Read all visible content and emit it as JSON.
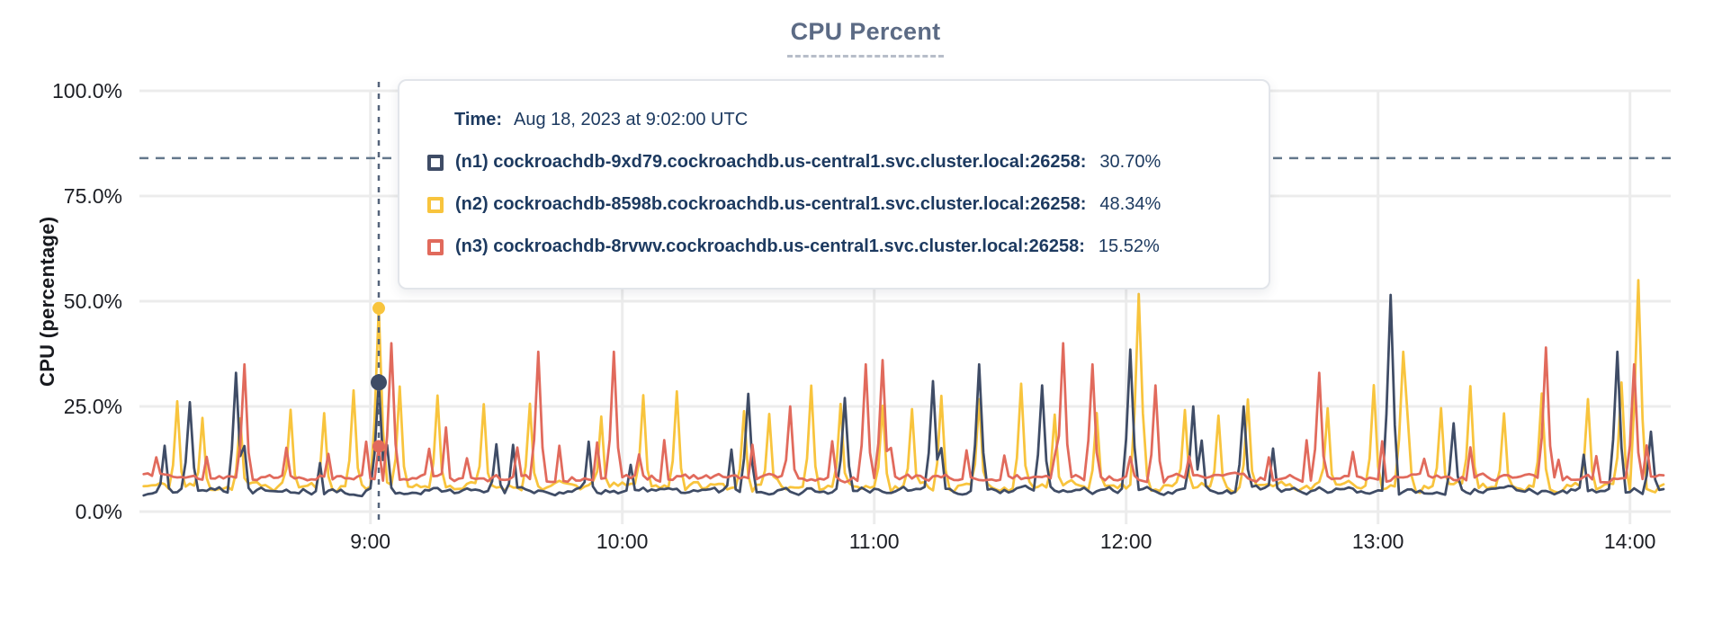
{
  "chart_data": {
    "type": "line",
    "title": "CPU Percent",
    "ylabel": "CPU (percentage)",
    "ylim": [
      0,
      100
    ],
    "grid": true,
    "legend_position": "tooltip-overlay",
    "y_ticks": [
      {
        "label": "0.0%",
        "value": 0
      },
      {
        "label": "25.0%",
        "value": 25
      },
      {
        "label": "50.0%",
        "value": 50
      },
      {
        "label": "75.0%",
        "value": 75
      },
      {
        "label": "100.0%",
        "value": 100
      }
    ],
    "x_ticks": [
      {
        "label": "9:00",
        "minute": 540
      },
      {
        "label": "10:00",
        "minute": 600
      },
      {
        "label": "11:00",
        "minute": 660
      },
      {
        "label": "12:00",
        "minute": 720
      },
      {
        "label": "13:00",
        "minute": 780
      },
      {
        "label": "14:00",
        "minute": 840
      }
    ],
    "x_domain_minutes": [
      486,
      848
    ],
    "sample_step_min": 1,
    "seed": 11,
    "threshold_value": 84,
    "crosshair": {
      "minute": 542,
      "time_label": "9:02"
    },
    "series": [
      {
        "id": "n2",
        "name": "(n2) cockroachdb-8598b.cockroachdb.us-central1.svc.cluster.local:26258",
        "color": "#f8c43d",
        "baseline": [
          4.0,
          8.0
        ],
        "spike_period_min": 9.5,
        "spike_prob": 0.95,
        "spike_range": [
          22,
          31
        ],
        "major_spikes": [
          [
            542,
            48.34
          ],
          [
            723,
            51.7
          ],
          [
            786,
            38
          ],
          [
            842,
            55
          ]
        ],
        "value_at_crosshair": 48.34,
        "dot_radius": 7
      },
      {
        "id": "n1",
        "name": "(n1) cockroachdb-9xd79.cockroachdb.us-central1.svc.cluster.local:26258",
        "color": "#3f4c66",
        "baseline": [
          3.5,
          6.5
        ],
        "spike_period_min": 14,
        "spike_prob": 0.6,
        "spike_range": [
          10,
          17
        ],
        "major_spikes": [
          [
            497,
            26
          ],
          [
            508,
            33
          ],
          [
            542,
            30.7
          ],
          [
            570,
            16
          ],
          [
            630,
            28
          ],
          [
            653,
            27
          ],
          [
            674,
            31
          ],
          [
            685,
            35
          ],
          [
            700,
            30
          ],
          [
            721,
            38.5
          ],
          [
            736,
            25
          ],
          [
            748,
            25
          ],
          [
            783,
            51.5
          ],
          [
            798,
            21
          ],
          [
            837,
            38
          ],
          [
            845,
            19
          ]
        ],
        "value_at_crosshair": 30.7,
        "dot_radius": 9
      },
      {
        "id": "n3",
        "name": "(n3) cockroachdb-8rvwv.cockroachdb.us-central1.svc.cluster.local:26258",
        "color": "#e16a5c",
        "baseline": [
          6.5,
          9.5
        ],
        "spike_period_min": 9,
        "spike_prob": 0.85,
        "spike_range": [
          12,
          17
        ],
        "major_spikes": [
          [
            510,
            35
          ],
          [
            545,
            40
          ],
          [
            558,
            20
          ],
          [
            580,
            38
          ],
          [
            598,
            38
          ],
          [
            640,
            25
          ],
          [
            658,
            35
          ],
          [
            662,
            36
          ],
          [
            705,
            40
          ],
          [
            712,
            35
          ],
          [
            727,
            30
          ],
          [
            766,
            33
          ],
          [
            820,
            39
          ],
          [
            841,
            35
          ]
        ],
        "value_at_crosshair": 15.52,
        "dot_radius": 7
      }
    ]
  },
  "tooltip": {
    "time_label": "Time:",
    "time_value": "Aug 18, 2023 at 9:02:00 UTC",
    "rows": [
      {
        "label": "(n1) cockroachdb-9xd79.cockroachdb.us-central1.svc.cluster.local:26258:",
        "value": "30.70%",
        "color": "#3f4c66"
      },
      {
        "label": "(n2) cockroachdb-8598b.cockroachdb.us-central1.svc.cluster.local:26258:",
        "value": "48.34%",
        "color": "#f8c43d"
      },
      {
        "label": "(n3) cockroachdb-8rvwv.cockroachdb.us-central1.svc.cluster.local:26258:",
        "value": "15.52%",
        "color": "#e16a5c"
      }
    ]
  }
}
